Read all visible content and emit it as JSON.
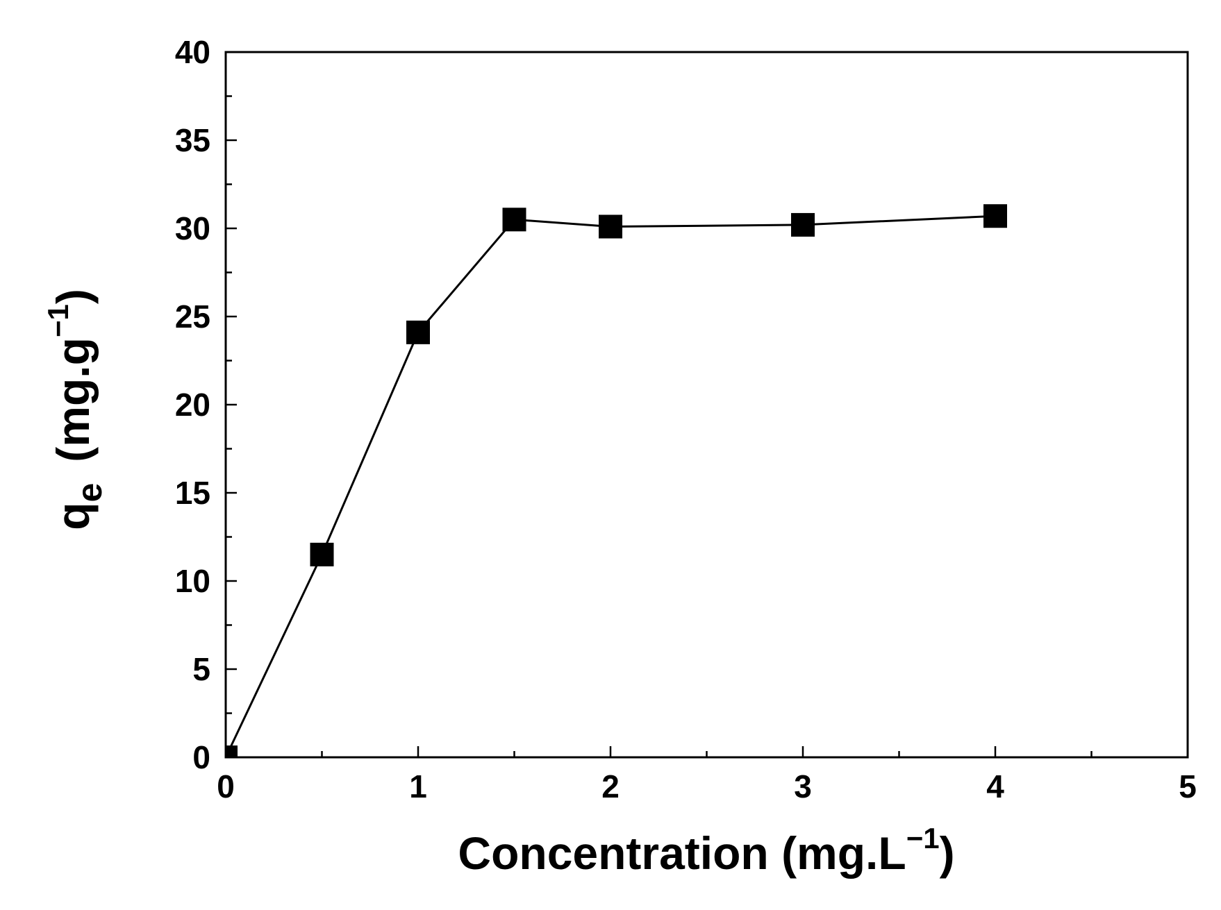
{
  "chart_data": {
    "type": "line",
    "title": "",
    "xlabel": "Concentration (mg.L",
    "xlabel_sup": "−1",
    "xlabel_close": ")",
    "ylabel_main": "q",
    "ylabel_sub": "e",
    "ylabel_unit": "(mg.g",
    "ylabel_sup": "−1",
    "ylabel_close": ")",
    "xlim": [
      0,
      5
    ],
    "ylim": [
      0,
      40
    ],
    "x_ticks": [
      0,
      1,
      2,
      3,
      4,
      5
    ],
    "y_ticks": [
      0,
      5,
      10,
      15,
      20,
      25,
      30,
      35,
      40
    ],
    "x_tick_labels": [
      "0",
      "1",
      "2",
      "3",
      "4",
      "5"
    ],
    "y_tick_labels": [
      "0",
      "5",
      "10",
      "15",
      "20",
      "25",
      "30",
      "35",
      "40"
    ],
    "grid": false,
    "series": [
      {
        "marker": "square",
        "color": "#000000",
        "x": [
          0,
          0.5,
          1,
          1.5,
          2,
          3,
          4
        ],
        "y": [
          0,
          11.5,
          24.1,
          30.5,
          30.1,
          30.2,
          30.7
        ]
      }
    ]
  }
}
